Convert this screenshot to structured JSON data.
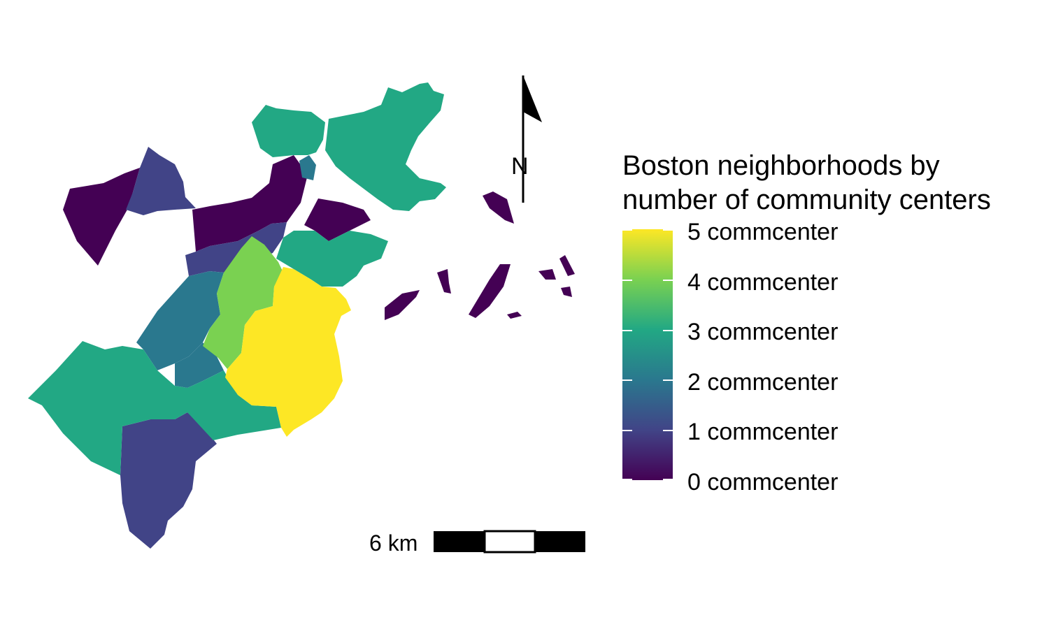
{
  "legend": {
    "title_line1": "Boston neighborhoods by",
    "title_line2": "number of community centers",
    "labels": [
      "5 commcenter",
      "4 commcenter",
      "3 commcenter",
      "2 commcenter",
      "1 commcenter",
      "0 commcenter"
    ],
    "scale_colors": [
      "#fde725",
      "#7ad151",
      "#22a884",
      "#2a788e",
      "#414487",
      "#440154"
    ]
  },
  "scalebar": {
    "label": "6 km"
  },
  "north_arrow": {
    "label": "N"
  },
  "colors": {
    "c0": "#440154",
    "c1": "#414487",
    "c2": "#2a788e",
    "c3": "#22a884",
    "c4": "#7ad151",
    "c5": "#fde725"
  }
}
